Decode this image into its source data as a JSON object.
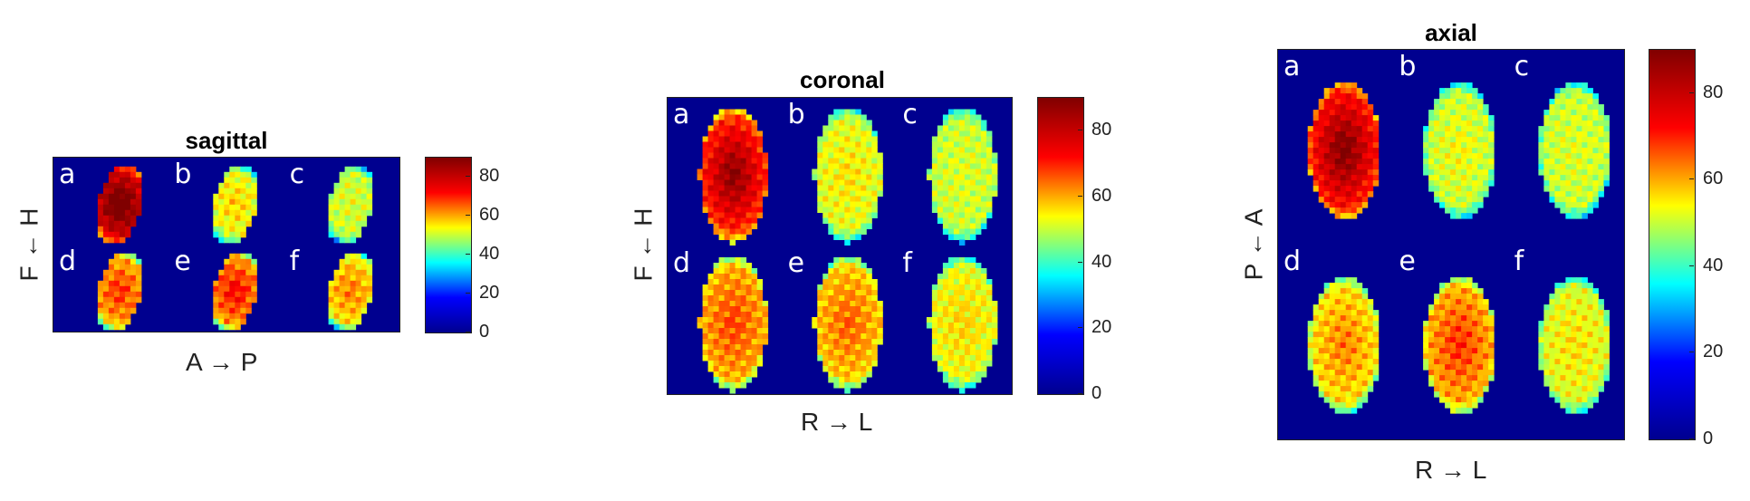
{
  "figure": {
    "colormap_stops": [
      "#00008f",
      "#0000ff",
      "#00ffff",
      "#ffff00",
      "#ff0000",
      "#800000"
    ],
    "colorbar_ticks": [
      0,
      20,
      40,
      60,
      80
    ],
    "colorbar_max": 90,
    "background_color": "#00008f"
  },
  "panels": [
    {
      "id": "sagittal",
      "title": "sagittal",
      "xlabel": "A → P",
      "ylabel": "F ← H",
      "grid": {
        "rows": 2,
        "cols": 3
      },
      "subpanels": [
        {
          "label": "a",
          "level": 78,
          "hot": 1.0
        },
        {
          "label": "b",
          "level": 52,
          "hot": 0.3
        },
        {
          "label": "c",
          "level": 50,
          "hot": 0.1
        },
        {
          "label": "d",
          "level": 60,
          "hot": 0.5
        },
        {
          "label": "e",
          "level": 62,
          "hot": 0.6
        },
        {
          "label": "f",
          "level": 56,
          "hot": 0.4
        }
      ]
    },
    {
      "id": "coronal",
      "title": "coronal",
      "xlabel": "R → L",
      "ylabel": "F ← H",
      "grid": {
        "rows": 2,
        "cols": 3
      },
      "subpanels": [
        {
          "label": "a",
          "level": 70,
          "hot": 1.0
        },
        {
          "label": "b",
          "level": 52,
          "hot": 0.2
        },
        {
          "label": "c",
          "level": 50,
          "hot": 0.1
        },
        {
          "label": "d",
          "level": 60,
          "hot": 0.4
        },
        {
          "label": "e",
          "level": 58,
          "hot": 0.4
        },
        {
          "label": "f",
          "level": 53,
          "hot": 0.2
        }
      ]
    },
    {
      "id": "axial",
      "title": "axial",
      "xlabel": "R → L",
      "ylabel": "P ← A",
      "grid": {
        "rows": 2,
        "cols": 3
      },
      "subpanels": [
        {
          "label": "a",
          "level": 72,
          "hot": 1.0
        },
        {
          "label": "b",
          "level": 50,
          "hot": 0.2
        },
        {
          "label": "c",
          "level": 50,
          "hot": 0.1
        },
        {
          "label": "d",
          "level": 56,
          "hot": 0.4
        },
        {
          "label": "e",
          "level": 60,
          "hot": 0.5
        },
        {
          "label": "f",
          "level": 52,
          "hot": 0.2
        }
      ]
    }
  ]
}
